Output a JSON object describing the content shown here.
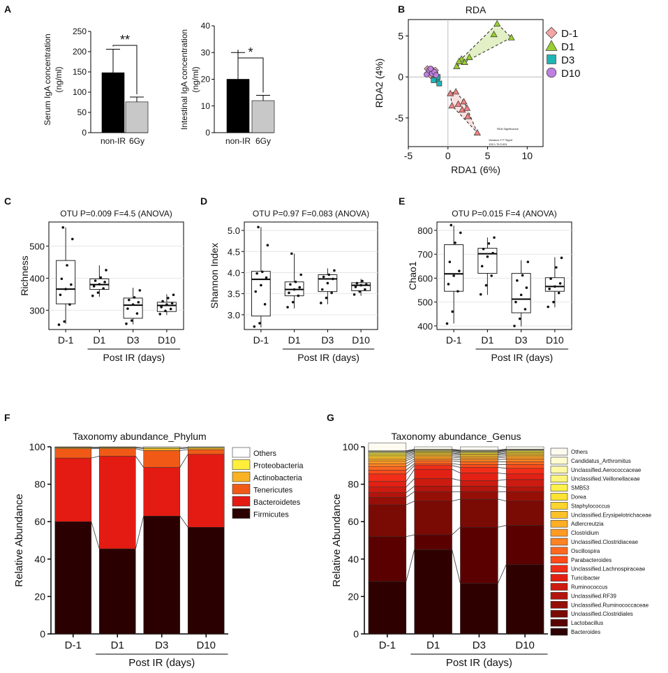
{
  "figure": {
    "panels": [
      {
        "letter": "A"
      },
      {
        "letter": "B"
      },
      {
        "letter": "C"
      },
      {
        "letter": "D"
      },
      {
        "letter": "E"
      },
      {
        "letter": "F"
      },
      {
        "letter": "G"
      }
    ],
    "post_ir_label": "Post IR (days)"
  },
  "chart_data": [
    {
      "id": "A1",
      "type": "bar",
      "panel": "A",
      "ylabel": "Serum IgA concentration (ng/ml)",
      "ylabel_lines": [
        "Serum IgA concentration",
        "(ng/ml)"
      ],
      "ylim": [
        0,
        250
      ],
      "yticks": [
        0,
        50,
        100,
        150,
        200,
        250
      ],
      "categories": [
        "non-IR",
        "6Gy"
      ],
      "values": [
        148,
        76
      ],
      "errors": [
        58,
        12
      ],
      "colors": [
        "#000000",
        "#c8c8c8"
      ],
      "significance": "**"
    },
    {
      "id": "A2",
      "type": "bar",
      "panel": "A",
      "ylabel": "Intestinal IgA concentration (ng/ml)",
      "ylabel_lines": [
        "Intestinal IgA concentration",
        "(ng/ml)"
      ],
      "ylim": [
        0,
        40
      ],
      "yticks": [
        0,
        10,
        20,
        30,
        40
      ],
      "categories": [
        "non-IR",
        "6Gy"
      ],
      "values": [
        20,
        12
      ],
      "errors": [
        10,
        2
      ],
      "colors": [
        "#000000",
        "#c8c8c8"
      ],
      "significance": "*"
    },
    {
      "id": "B",
      "type": "scatter",
      "panel": "B",
      "title": "RDA",
      "xlabel": "RDA1 (6%)",
      "ylabel": "RDA2 (4%)",
      "xlim": [
        -5,
        12
      ],
      "ylim": [
        -8.5,
        7
      ],
      "xticks": [
        -5,
        0,
        5,
        10
      ],
      "yticks": [
        -5,
        0,
        5
      ],
      "inset_text": [
        "RDA Significance",
        "Variance  F  P  Signif",
        "128  1.76  0.001"
      ],
      "series": [
        {
          "name": "D-1",
          "marker": "diamond",
          "color": "#f4a6a6",
          "points": [
            [
              -2.6,
              1.0
            ],
            [
              -2.3,
              0.7
            ],
            [
              -2.0,
              0.9
            ],
            [
              -1.8,
              0.4
            ],
            [
              -2.2,
              0.2
            ],
            [
              -1.6,
              0.8
            ],
            [
              -2.5,
              0.5
            ]
          ]
        },
        {
          "name": "D1",
          "marker": "triangle",
          "color": "#9acd32",
          "hull": true,
          "hull_color": "#e3f0c6",
          "points": [
            [
              1.1,
              1.3
            ],
            [
              1.7,
              2.2
            ],
            [
              2.1,
              1.8
            ],
            [
              6.2,
              6.5
            ],
            [
              8.0,
              4.8
            ],
            [
              2.7,
              2.4
            ],
            [
              1.4,
              1.9
            ],
            [
              5.8,
              5.2
            ]
          ]
        },
        {
          "name": "D3",
          "marker": "square",
          "color": "#1fb5b5",
          "points": [
            [
              -1.4,
              -0.2
            ],
            [
              -1.1,
              -0.8
            ],
            [
              -1.6,
              0.3
            ],
            [
              -1.3,
              0.0
            ],
            [
              -1.8,
              -0.4
            ]
          ]
        },
        {
          "name": "D10",
          "marker": "circle",
          "color": "#bf7fe0",
          "points": [
            [
              -2.4,
              0.8
            ],
            [
              -2.0,
              0.4
            ],
            [
              -1.7,
              0.6
            ],
            [
              -2.2,
              1.0
            ],
            [
              -1.5,
              0.2
            ],
            [
              -2.7,
              0.3
            ]
          ]
        },
        {
          "name": "D1-tri",
          "marker": "triangle",
          "color": "#f08080",
          "legend": false,
          "hull": true,
          "hull_color": "#fbe0e0",
          "points": [
            [
              0.3,
              -2.0
            ],
            [
              1.0,
              -1.8
            ],
            [
              0.5,
              -3.5
            ],
            [
              1.3,
              -3.3
            ],
            [
              2.0,
              -3.0
            ],
            [
              1.8,
              -4.0
            ],
            [
              2.5,
              -4.8
            ],
            [
              3.7,
              -6.8
            ],
            [
              2.4,
              -3.8
            ]
          ]
        }
      ]
    },
    {
      "id": "C",
      "type": "box",
      "panel": "C",
      "title": "OTU P=0.009 F=4.5 (ANOVA)",
      "ylabel": "Richness",
      "ylim": [
        240,
        575
      ],
      "yticks": [
        300,
        400,
        500
      ],
      "categories": [
        "D-1",
        "D1",
        "D3",
        "D10"
      ],
      "boxes": [
        {
          "q1": 320,
          "median": 366,
          "q3": 455,
          "lo": 258,
          "hi": 558,
          "points": [
            255,
            265,
            318,
            348,
            366,
            380,
            398,
            440,
            522,
            558
          ]
        },
        {
          "q1": 365,
          "median": 380,
          "q3": 398,
          "lo": 342,
          "hi": 440,
          "points": [
            345,
            355,
            368,
            375,
            381,
            388,
            392,
            402,
            425
          ]
        },
        {
          "q1": 275,
          "median": 316,
          "q3": 338,
          "lo": 256,
          "hi": 370,
          "points": [
            258,
            268,
            290,
            305,
            318,
            325,
            332,
            340,
            362
          ]
        },
        {
          "q1": 296,
          "median": 315,
          "q3": 325,
          "lo": 285,
          "hi": 350,
          "points": [
            288,
            298,
            304,
            310,
            318,
            322,
            328,
            338,
            348
          ]
        }
      ]
    },
    {
      "id": "D",
      "type": "box",
      "panel": "D",
      "title": "OTU P=0.97 F=0.083 (ANOVA)",
      "ylabel": "Shannon Index",
      "ylim": [
        2.65,
        5.2
      ],
      "yticks": [
        3.0,
        3.5,
        4.0,
        4.5,
        5.0
      ],
      "categories": [
        "D-1",
        "D1",
        "D3",
        "D10"
      ],
      "boxes": [
        {
          "q1": 2.97,
          "median": 3.84,
          "q3": 4.03,
          "lo": 2.7,
          "hi": 5.08,
          "points": [
            2.72,
            2.8,
            3.25,
            3.55,
            3.7,
            3.88,
            3.98,
            4.02,
            4.65,
            5.08
          ]
        },
        {
          "q1": 3.45,
          "median": 3.6,
          "q3": 3.78,
          "lo": 3.15,
          "hi": 4.45,
          "points": [
            3.18,
            3.3,
            3.45,
            3.52,
            3.6,
            3.65,
            3.72,
            3.78,
            3.95,
            4.45
          ]
        },
        {
          "q1": 3.55,
          "median": 3.85,
          "q3": 3.95,
          "lo": 3.25,
          "hi": 4.1,
          "points": [
            3.28,
            3.4,
            3.52,
            3.6,
            3.75,
            3.85,
            3.9,
            3.95,
            4.05
          ]
        },
        {
          "q1": 3.57,
          "median": 3.7,
          "q3": 3.76,
          "lo": 3.45,
          "hi": 3.85,
          "points": [
            3.48,
            3.55,
            3.6,
            3.66,
            3.7,
            3.72,
            3.75,
            3.8
          ]
        }
      ]
    },
    {
      "id": "E",
      "type": "box",
      "panel": "E",
      "title": "OTU P=0.015 F=4 (ANOVA)",
      "ylabel": "Chao1",
      "ylim": [
        385,
        835
      ],
      "yticks": [
        400,
        500,
        600,
        700,
        800
      ],
      "categories": [
        "D-1",
        "D1",
        "D3",
        "D10"
      ],
      "boxes": [
        {
          "q1": 545,
          "median": 618,
          "q3": 740,
          "lo": 410,
          "hi": 820,
          "points": [
            410,
            460,
            545,
            575,
            610,
            630,
            668,
            748,
            790,
            822
          ]
        },
        {
          "q1": 620,
          "median": 702,
          "q3": 725,
          "lo": 530,
          "hi": 770,
          "points": [
            532,
            570,
            610,
            650,
            690,
            705,
            722,
            745,
            770
          ]
        },
        {
          "q1": 455,
          "median": 512,
          "q3": 620,
          "lo": 398,
          "hi": 675,
          "points": [
            400,
            430,
            470,
            500,
            530,
            560,
            590,
            612,
            668
          ]
        },
        {
          "q1": 545,
          "median": 565,
          "q3": 602,
          "lo": 478,
          "hi": 688,
          "points": [
            480,
            500,
            538,
            555,
            565,
            578,
            598,
            645,
            685
          ]
        }
      ]
    },
    {
      "id": "F",
      "type": "bar",
      "stacked": true,
      "panel": "F",
      "title": "Taxonomy abundance_Phylum",
      "ylabel": "Relative Abundance",
      "ylim": [
        0,
        100
      ],
      "yticks": [
        0,
        20,
        40,
        60,
        80,
        100
      ],
      "categories": [
        "D-1",
        "D1",
        "D3",
        "D10"
      ],
      "series": [
        {
          "name": "Firmicutes",
          "color": "#2a0000",
          "values": [
            60,
            45.5,
            63,
            57
          ]
        },
        {
          "name": "Bacteroidetes",
          "color": "#e41b13",
          "values": [
            34,
            49.5,
            26,
            39
          ]
        },
        {
          "name": "Tenericutes",
          "color": "#f05a16",
          "values": [
            5,
            4,
            9,
            2.5
          ]
        },
        {
          "name": "Actinobacteria",
          "color": "#f9b224",
          "values": [
            0.5,
            0.5,
            1,
            0.8
          ]
        },
        {
          "name": "Proteobacteria",
          "color": "#ffef3b",
          "values": [
            0.3,
            0.3,
            0.6,
            0.4
          ]
        },
        {
          "name": "Others",
          "color": "#ffffff",
          "values": [
            0.2,
            0.2,
            0.4,
            0.3
          ]
        }
      ]
    },
    {
      "id": "G",
      "type": "bar",
      "stacked": true,
      "panel": "G",
      "title": "Taxonomy abundance_Genus",
      "ylabel": "Relative Abundance",
      "ylim": [
        0,
        100
      ],
      "yticks": [
        0,
        20,
        40,
        60,
        80,
        100
      ],
      "categories": [
        "D-1",
        "D1",
        "D3",
        "D10"
      ],
      "series": [
        {
          "name": "Bacteroides",
          "color": "#2e0000",
          "values": [
            28,
            45,
            27,
            37
          ]
        },
        {
          "name": "Lactobacillus",
          "color": "#5a0000",
          "values": [
            24,
            8,
            30,
            21
          ]
        },
        {
          "name": "Unclassified.Clostridiales",
          "color": "#7a0a04",
          "values": [
            17,
            18,
            15,
            13
          ]
        },
        {
          "name": "Unclassified.Ruminococcaceae",
          "color": "#960f07",
          "values": [
            4,
            5,
            4,
            5
          ]
        },
        {
          "name": "Unclassified.RF39",
          "color": "#b3150c",
          "values": [
            2.5,
            3,
            3,
            2.5
          ]
        },
        {
          "name": "Ruminococcus",
          "color": "#cc1b10",
          "values": [
            3,
            4,
            3,
            4
          ]
        },
        {
          "name": "Turicibacter",
          "color": "#e22114",
          "values": [
            3,
            5,
            4,
            3
          ]
        },
        {
          "name": "Unclassified.Lachnospiraceae",
          "color": "#f22e18",
          "values": [
            4,
            2,
            3,
            3
          ]
        },
        {
          "name": "Parabacteroides",
          "color": "#ff4a1a",
          "values": [
            2,
            1,
            1.5,
            2
          ]
        },
        {
          "name": "Oscillospira",
          "color": "#ff6820",
          "values": [
            2,
            1.5,
            1.5,
            1.5
          ]
        },
        {
          "name": "Unclassified.Clostridiaceae",
          "color": "#ff8322",
          "values": [
            1.5,
            1,
            1,
            1.5
          ]
        },
        {
          "name": "Clostridium",
          "color": "#ff9b24",
          "values": [
            1.5,
            1,
            1,
            1
          ]
        },
        {
          "name": "Adlercreutzia",
          "color": "#ffae26",
          "values": [
            1,
            0.8,
            0.8,
            0.8
          ]
        },
        {
          "name": "Unclassified.Erysipelotrichaceae",
          "color": "#ffc12a",
          "values": [
            1,
            0.8,
            0.8,
            0.8
          ]
        },
        {
          "name": "Staphylococcus",
          "color": "#ffd42e",
          "values": [
            0.8,
            0.6,
            0.6,
            0.6
          ]
        },
        {
          "name": "Dorea",
          "color": "#ffe333",
          "values": [
            0.8,
            0.5,
            0.5,
            0.6
          ]
        },
        {
          "name": "SMB53",
          "color": "#fff04a",
          "values": [
            0.6,
            0.5,
            0.5,
            0.5
          ]
        },
        {
          "name": "Unclassified.Veillonellaceae",
          "color": "#fff57a",
          "values": [
            0.5,
            0.4,
            0.4,
            0.4
          ]
        },
        {
          "name": "Unclassified.Aerococcaceae",
          "color": "#fff9a8",
          "values": [
            0.4,
            0.3,
            0.3,
            0.3
          ]
        },
        {
          "name": "Candidatus_Arthromitus",
          "color": "#fffcd0",
          "values": [
            0.3,
            0.3,
            0.3,
            0.3
          ]
        },
        {
          "name": "Others",
          "color": "#fdfaf0",
          "values": [
            4.1,
            1.3,
            1.8,
            1.2
          ]
        }
      ]
    }
  ]
}
